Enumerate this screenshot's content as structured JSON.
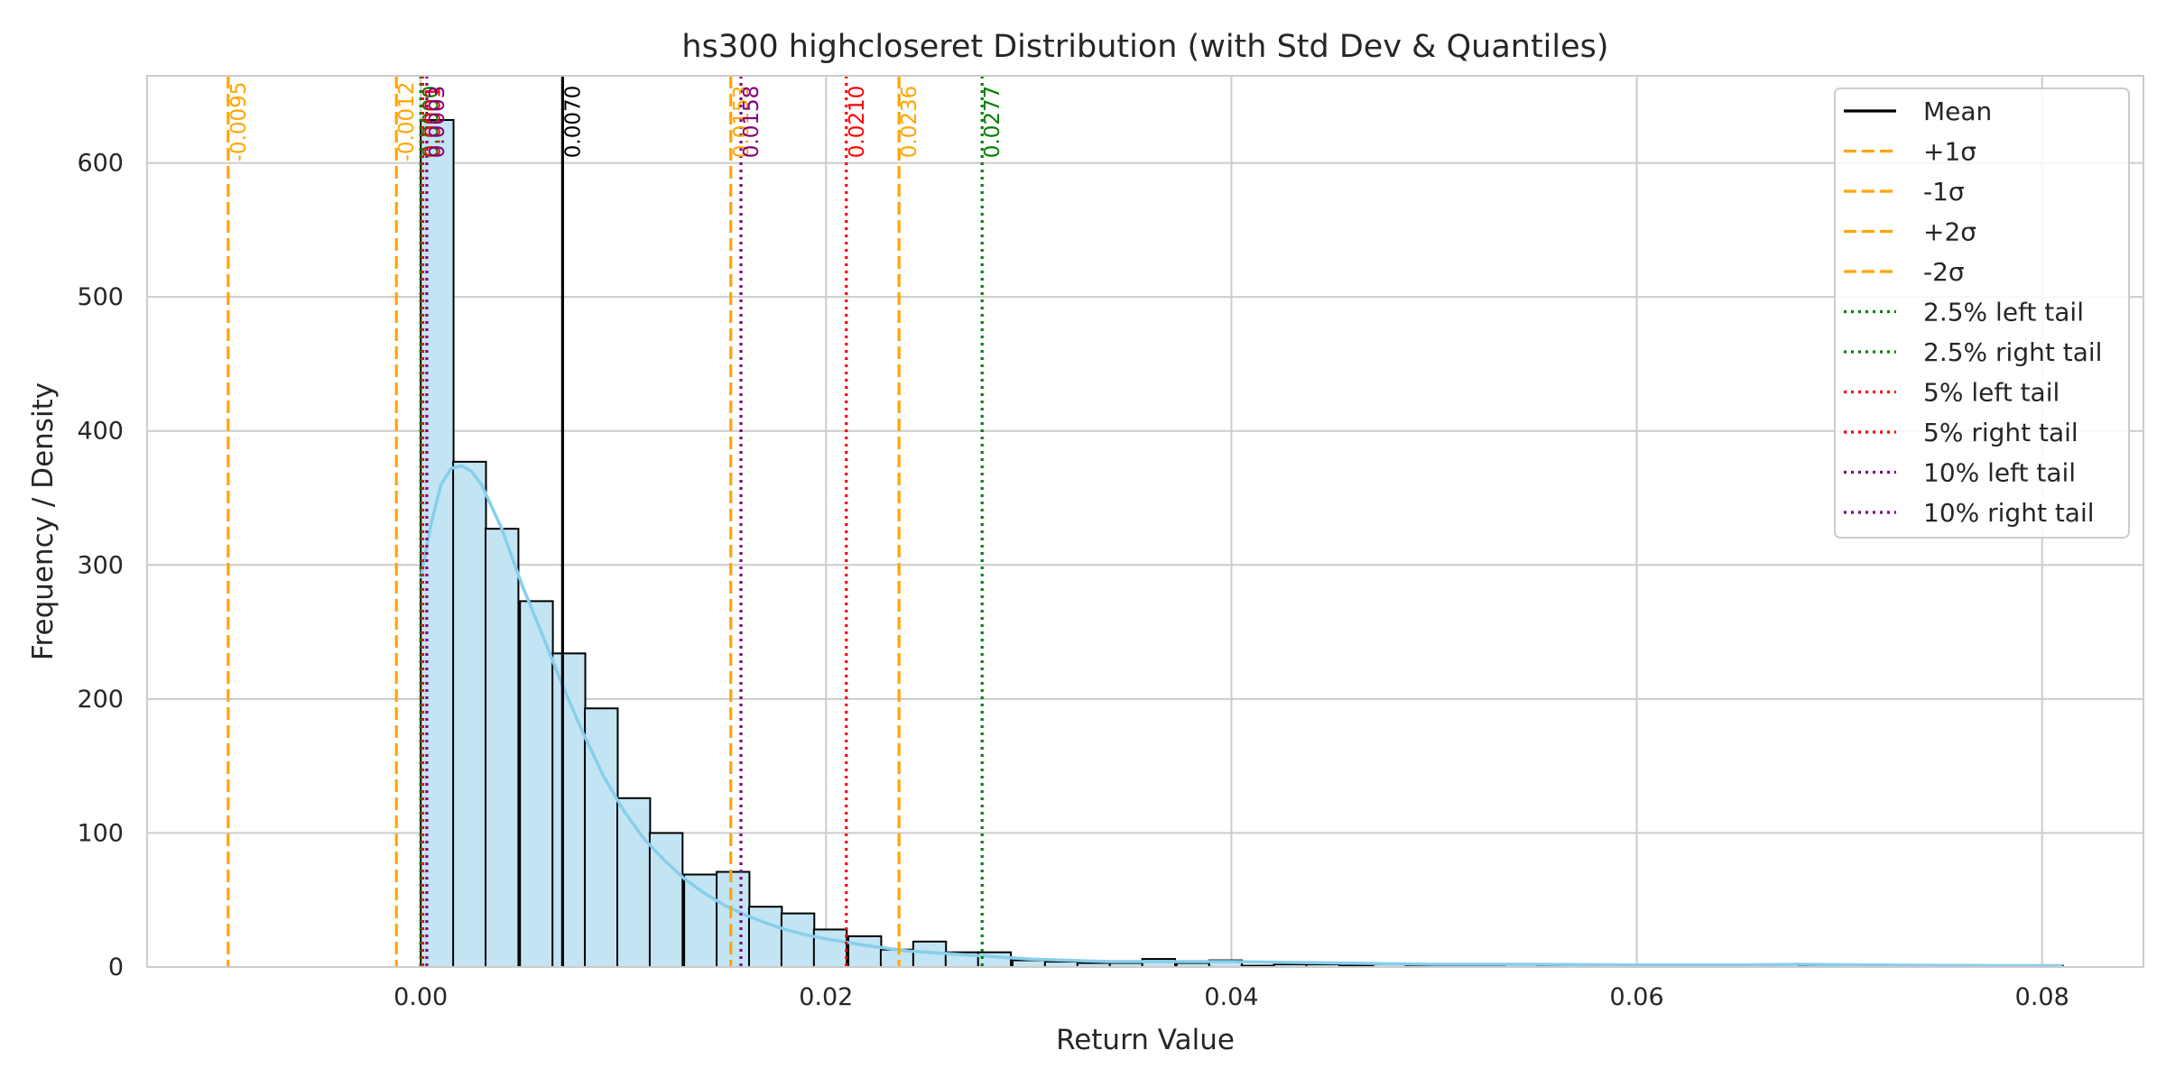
{
  "chart_data": {
    "type": "histogram",
    "title": "hs300 highcloseret Distribution (with Std Dev & Quantiles)",
    "xlabel": "Return Value",
    "ylabel": "Frequency / Density",
    "xlim": [
      -0.0135,
      0.085
    ],
    "ylim": [
      0,
      665
    ],
    "xticks": [
      0.0,
      0.02,
      0.04,
      0.06,
      0.08
    ],
    "xtick_labels": [
      "0.00",
      "0.02",
      "0.04",
      "0.06",
      "0.08"
    ],
    "yticks": [
      0,
      100,
      200,
      300,
      400,
      500,
      600
    ],
    "ytick_labels": [
      "0",
      "100",
      "200",
      "300",
      "400",
      "500",
      "600"
    ],
    "grid": true,
    "legend_position": "top-right",
    "bin_width": 0.00162,
    "bins": [
      {
        "x0": 0.0,
        "count": 632
      },
      {
        "x0": 0.0016,
        "count": 377
      },
      {
        "x0": 0.0032,
        "count": 327
      },
      {
        "x0": 0.0049,
        "count": 273
      },
      {
        "x0": 0.0065,
        "count": 234
      },
      {
        "x0": 0.0081,
        "count": 193
      },
      {
        "x0": 0.0097,
        "count": 126
      },
      {
        "x0": 0.0113,
        "count": 100
      },
      {
        "x0": 0.013,
        "count": 69
      },
      {
        "x0": 0.0146,
        "count": 71
      },
      {
        "x0": 0.0162,
        "count": 45
      },
      {
        "x0": 0.0178,
        "count": 40
      },
      {
        "x0": 0.0194,
        "count": 28
      },
      {
        "x0": 0.0211,
        "count": 23
      },
      {
        "x0": 0.0227,
        "count": 13
      },
      {
        "x0": 0.0243,
        "count": 19
      },
      {
        "x0": 0.0259,
        "count": 11
      },
      {
        "x0": 0.0275,
        "count": 11
      },
      {
        "x0": 0.0292,
        "count": 5
      },
      {
        "x0": 0.0308,
        "count": 4
      },
      {
        "x0": 0.0324,
        "count": 3
      },
      {
        "x0": 0.034,
        "count": 3
      },
      {
        "x0": 0.0356,
        "count": 6
      },
      {
        "x0": 0.0373,
        "count": 3
      },
      {
        "x0": 0.0389,
        "count": 5
      },
      {
        "x0": 0.0405,
        "count": 1
      },
      {
        "x0": 0.0421,
        "count": 2
      },
      {
        "x0": 0.0437,
        "count": 2
      },
      {
        "x0": 0.0454,
        "count": 1
      },
      {
        "x0": 0.047,
        "count": 2
      },
      {
        "x0": 0.0486,
        "count": 1
      },
      {
        "x0": 0.0502,
        "count": 1
      },
      {
        "x0": 0.0518,
        "count": 1
      },
      {
        "x0": 0.0535,
        "count": 2
      },
      {
        "x0": 0.0551,
        "count": 1
      },
      {
        "x0": 0.0567,
        "count": 1
      },
      {
        "x0": 0.0583,
        "count": 1
      },
      {
        "x0": 0.0599,
        "count": 1
      },
      {
        "x0": 0.0616,
        "count": 1
      },
      {
        "x0": 0.0632,
        "count": 0
      },
      {
        "x0": 0.0648,
        "count": 1
      },
      {
        "x0": 0.0664,
        "count": 0
      },
      {
        "x0": 0.068,
        "count": 1
      },
      {
        "x0": 0.0697,
        "count": 0
      },
      {
        "x0": 0.0713,
        "count": 0
      },
      {
        "x0": 0.0729,
        "count": 0
      },
      {
        "x0": 0.0745,
        "count": 0
      },
      {
        "x0": 0.0761,
        "count": 0
      },
      {
        "x0": 0.0778,
        "count": 0
      },
      {
        "x0": 0.0794,
        "count": 1
      }
    ],
    "kde": {
      "color": "#87ceeb",
      "x": [
        0.0,
        0.0005,
        0.001,
        0.0015,
        0.002,
        0.0025,
        0.003,
        0.004,
        0.005,
        0.006,
        0.007,
        0.008,
        0.009,
        0.01,
        0.011,
        0.012,
        0.013,
        0.014,
        0.015,
        0.016,
        0.017,
        0.018,
        0.019,
        0.02,
        0.022,
        0.024,
        0.026,
        0.028,
        0.03,
        0.032,
        0.034,
        0.036,
        0.038,
        0.04,
        0.045,
        0.05,
        0.055,
        0.06,
        0.065,
        0.068,
        0.072,
        0.078,
        0.081
      ],
      "y": [
        290,
        330,
        360,
        372,
        374,
        370,
        360,
        327,
        285,
        248,
        210,
        175,
        143,
        117,
        96,
        80,
        66,
        55,
        46,
        39,
        33,
        28,
        24,
        21,
        16,
        12,
        10,
        8,
        6,
        5,
        4,
        4,
        4,
        4,
        3,
        2,
        2,
        1.5,
        1.5,
        2,
        1.5,
        1,
        1
      ]
    },
    "lines": [
      {
        "label": "-0.0095",
        "x": -0.0095,
        "color": "#ffa500",
        "style": "dashed"
      },
      {
        "label": "-0.0012",
        "x": -0.0012,
        "color": "#ffa500",
        "style": "dashed"
      },
      {
        "label": "0.0153",
        "x": 0.0153,
        "color": "#ffa500",
        "style": "dashed"
      },
      {
        "label": "0.0236",
        "x": 0.0236,
        "color": "#ffa500",
        "style": "dashed"
      },
      {
        "label": "0.0000",
        "x": 0.0,
        "color": "#008000",
        "style": "dotted"
      },
      {
        "label": "0.0277",
        "x": 0.0277,
        "color": "#008000",
        "style": "dotted"
      },
      {
        "label": "0.0001",
        "x": 0.0001,
        "color": "#ff0000",
        "style": "dotted"
      },
      {
        "label": "0.0210",
        "x": 0.021,
        "color": "#ff0000",
        "style": "dotted"
      },
      {
        "label": "0.0003",
        "x": 0.0003,
        "color": "#800080",
        "style": "dotted"
      },
      {
        "label": "0.0158",
        "x": 0.0158,
        "color": "#800080",
        "style": "dotted"
      },
      {
        "label": "0.0070",
        "x": 0.007,
        "color": "#000000",
        "style": "solid"
      }
    ],
    "legend": [
      {
        "label": "Mean",
        "color": "#000000",
        "style": "solid"
      },
      {
        "label": "+1σ",
        "color": "#ffa500",
        "style": "dashed"
      },
      {
        "label": "-1σ",
        "color": "#ffa500",
        "style": "dashed"
      },
      {
        "label": "+2σ",
        "color": "#ffa500",
        "style": "dashed"
      },
      {
        "label": "-2σ",
        "color": "#ffa500",
        "style": "dashed"
      },
      {
        "label": "2.5% left tail",
        "color": "#008000",
        "style": "dotted"
      },
      {
        "label": "2.5% right tail",
        "color": "#008000",
        "style": "dotted"
      },
      {
        "label": "5% left tail",
        "color": "#ff0000",
        "style": "dotted"
      },
      {
        "label": "5% right tail",
        "color": "#ff0000",
        "style": "dotted"
      },
      {
        "label": "10% left tail",
        "color": "#800080",
        "style": "dotted"
      },
      {
        "label": "10% right tail",
        "color": "#800080",
        "style": "dotted"
      }
    ],
    "colors": {
      "bar_fill": "#c3e4f2",
      "bar_edge": "#000000",
      "grid": "#cccccc",
      "axes_edge": "#cccccc",
      "text": "#262626"
    }
  }
}
